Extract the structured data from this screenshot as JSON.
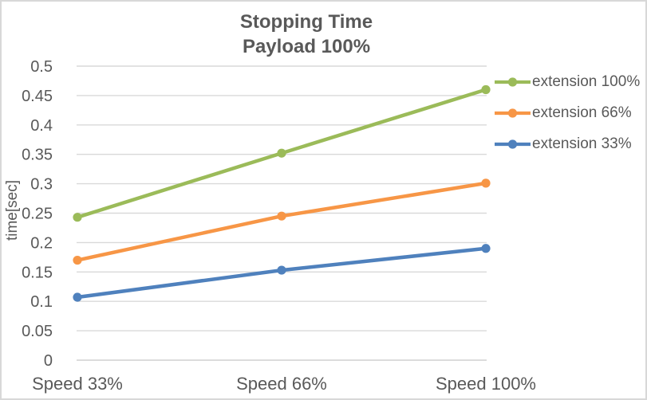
{
  "chart_data": {
    "type": "line",
    "title": "Stopping Time",
    "subtitle": "Payload 100%",
    "categories": [
      "Speed 33%",
      "Speed 66%",
      "Speed 100%"
    ],
    "series": [
      {
        "name": "extension 100%",
        "color": "#9bbb59",
        "values": [
          0.243,
          0.352,
          0.46
        ]
      },
      {
        "name": "extension 66%",
        "color": "#f79646",
        "values": [
          0.17,
          0.245,
          0.301
        ]
      },
      {
        "name": "extension 33%",
        "color": "#4f81bd",
        "values": [
          0.107,
          0.153,
          0.19
        ]
      }
    ],
    "xlabel": "",
    "ylabel": "time[sec]",
    "ylim": [
      0,
      0.5
    ],
    "ytick_step": 0.05,
    "yticks": [
      "0.5",
      "0.45",
      "0.4",
      "0.35",
      "0.3",
      "0.25",
      "0.2",
      "0.15",
      "0.1",
      "0.05",
      "0"
    ],
    "grid": true,
    "legend_position": "right",
    "marker": "circle"
  },
  "colors": {
    "text": "#595959",
    "gridline": "#d9d9d9",
    "axis_line": "#d0d0d0",
    "frame_border": "#d8d8d8",
    "background": "#ffffff"
  }
}
